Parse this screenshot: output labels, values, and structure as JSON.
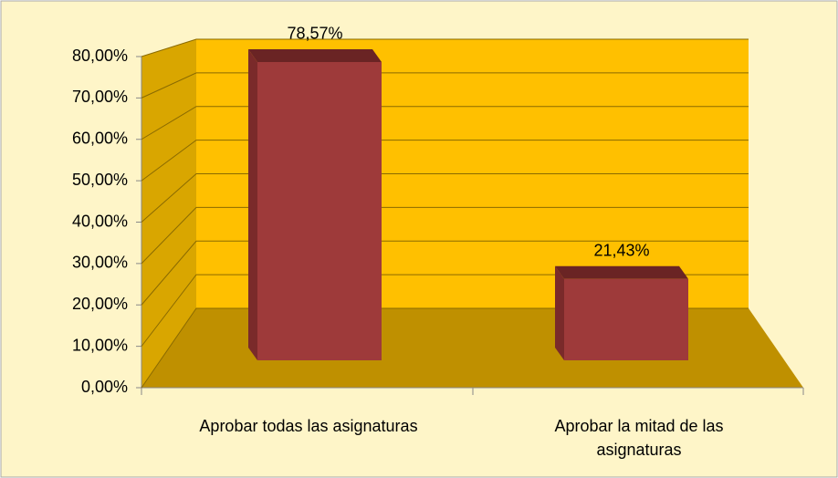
{
  "chart_data": {
    "type": "bar3d",
    "categories": [
      "Aprobar todas las asignaturas",
      "Aprobar la mitad de las asignaturas"
    ],
    "values": [
      78.57,
      21.43
    ],
    "value_labels": [
      "78,57%",
      "21,43%"
    ],
    "color": "#9e3a3a",
    "ylim": [
      0,
      80
    ],
    "yticks": [
      {
        "value": 0,
        "label": "0,00%"
      },
      {
        "value": 10,
        "label": "10,00%"
      },
      {
        "value": 20,
        "label": "20,00%"
      },
      {
        "value": 30,
        "label": "30,00%"
      },
      {
        "value": 40,
        "label": "40,00%"
      },
      {
        "value": 50,
        "label": "50,00%"
      },
      {
        "value": 60,
        "label": "60,00%"
      },
      {
        "value": 70,
        "label": "70,00%"
      },
      {
        "value": 80,
        "label": "80,00%"
      }
    ],
    "grid": true
  }
}
